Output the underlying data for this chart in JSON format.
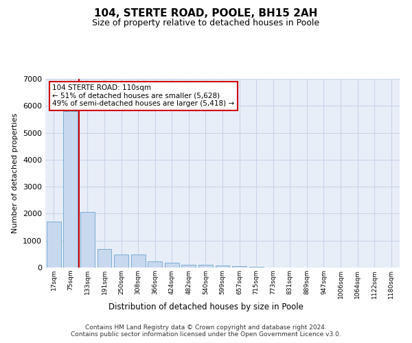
{
  "title": "104, STERTE ROAD, POOLE, BH15 2AH",
  "subtitle": "Size of property relative to detached houses in Poole",
  "xlabel": "Distribution of detached houses by size in Poole",
  "ylabel": "Number of detached properties",
  "footer": "Contains HM Land Registry data © Crown copyright and database right 2024.\nContains public sector information licensed under the Open Government Licence v3.0.",
  "bar_color": "#c8d8ee",
  "bar_edge_color": "#7aadd4",
  "grid_color": "#c8d4e8",
  "annotation_box_edge_color": "#cc0000",
  "vline_color": "#cc0000",
  "annotation_text": "104 STERTE ROAD: 110sqm\n← 51% of detached houses are smaller (5,628)\n49% of semi-detached houses are larger (5,418) →",
  "categories": [
    "17sqm",
    "75sqm",
    "133sqm",
    "191sqm",
    "250sqm",
    "308sqm",
    "366sqm",
    "424sqm",
    "482sqm",
    "540sqm",
    "599sqm",
    "657sqm",
    "715sqm",
    "773sqm",
    "831sqm",
    "889sqm",
    "947sqm",
    "1006sqm",
    "1064sqm",
    "1122sqm",
    "1180sqm"
  ],
  "values": [
    1700,
    5800,
    2050,
    700,
    480,
    480,
    230,
    180,
    110,
    95,
    70,
    50,
    20,
    10,
    5,
    5,
    3,
    3,
    2,
    2,
    2
  ],
  "ylim": [
    0,
    7000
  ],
  "yticks": [
    0,
    1000,
    2000,
    3000,
    4000,
    5000,
    6000,
    7000
  ],
  "vline_x_index": 1.5,
  "background_color": "#ffffff",
  "plot_background": "#e8eef8"
}
